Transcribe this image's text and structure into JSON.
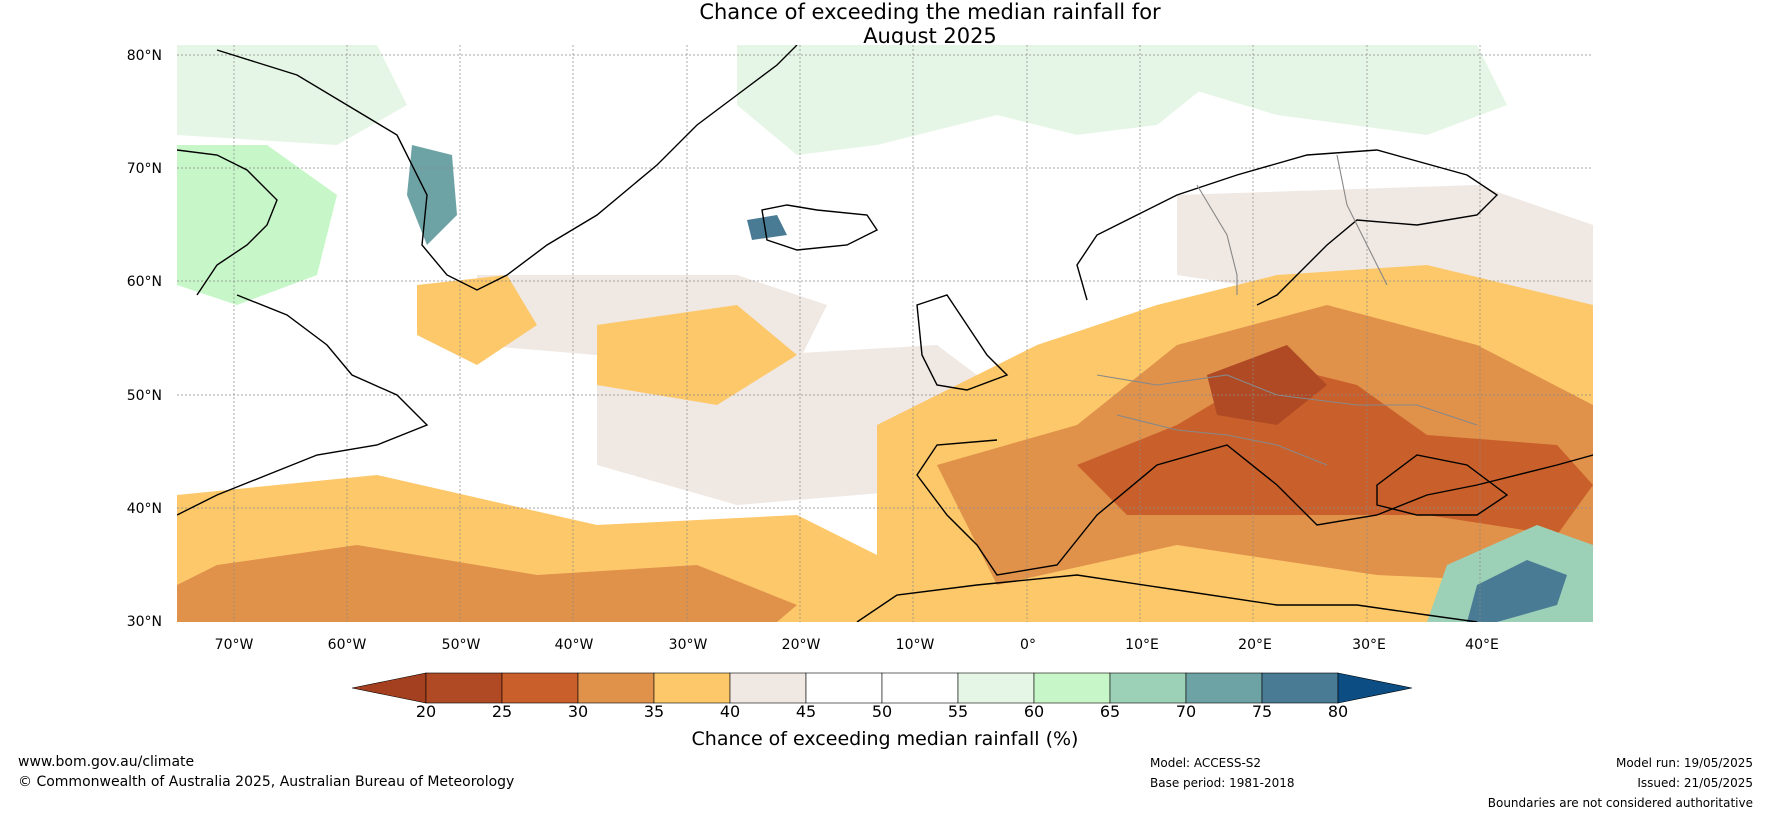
{
  "map": {
    "title_line1": "Chance of exceeding the median rainfall for",
    "title_line2": "August 2025",
    "latitude_labels": [
      "80°N",
      "70°N",
      "60°N",
      "50°N",
      "40°N",
      "30°N"
    ],
    "longitude_labels": [
      "70°W",
      "60°W",
      "50°W",
      "40°W",
      "30°W",
      "20°W",
      "10°W",
      "0°",
      "10°E",
      "20°E",
      "30°E",
      "40°E"
    ],
    "extent": {
      "lon_min": -75,
      "lon_max": 50,
      "lat_min": 30,
      "lat_max": 81
    },
    "colorbar": {
      "ticks": [
        "20",
        "25",
        "30",
        "35",
        "40",
        "45",
        "50",
        "55",
        "60",
        "65",
        "70",
        "75",
        "80"
      ],
      "colors": [
        "#a43f1f",
        "#b04a24",
        "#c9602b",
        "#e0924b",
        "#fdc86a",
        "#efe8e3",
        "#ffffff",
        "#ffffff",
        "#e6f6e6",
        "#c7f7c8",
        "#9cd0b7",
        "#6ea3a6",
        "#4a7b95",
        "#0c4d83"
      ],
      "label": "Chance of exceeding median rainfall (%)"
    }
  },
  "footer": {
    "website": "www.bom.gov.au/climate",
    "copyright": "© Commonwealth of Australia 2025, Australian Bureau of Meteorology",
    "model": "Model: ACCESS-S2",
    "base_period": "Base period: 1981-2018",
    "model_run": "Model run: 19/05/2025",
    "issued": "Issued: 21/05/2025",
    "disclaimer": "Boundaries are not considered authoritative"
  }
}
